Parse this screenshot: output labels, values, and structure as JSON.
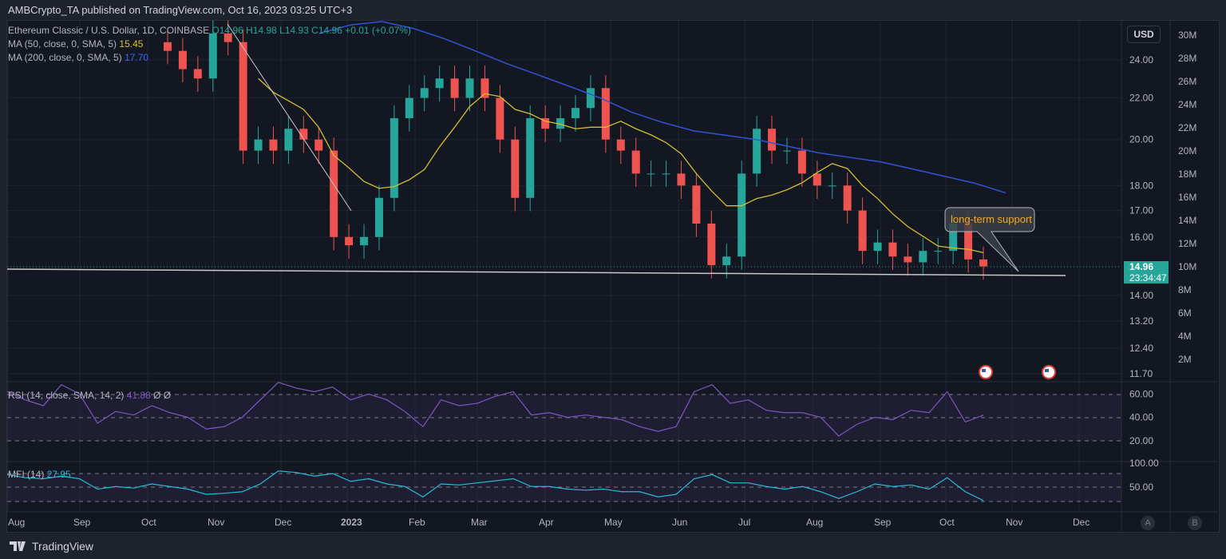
{
  "header": {
    "published": "AMBCrypto_TA published on TradingView.com, Oct 16, 2023 03:25 UTC+3"
  },
  "legend": {
    "symbol": "Ethereum Classic / U.S. Dollar, 1D, COINBASE",
    "ohlc": "O14.96 H14.98 L14.93 C14.96 +0.01 (+0.07%)",
    "ma50_label": "MA (50, close, 0, SMA, 5)",
    "ma50_value": "15.45",
    "ma200_label": "MA (200, close, 0, SMA, 5)",
    "ma200_value": "17.70",
    "rsi_label": "RSI (14, close, SMA, 14, 2)",
    "rsi_value": "41.88",
    "rsi_extra": "Ø Ø",
    "mfi_label": "MFI (14)",
    "mfi_value": "27.95"
  },
  "currency": "USD",
  "last_price": "14.96",
  "countdown": "23:34:47",
  "annotation": "long-term support",
  "scale_buttons": [
    "A",
    "B"
  ],
  "footer": {
    "brand": "TradingView"
  },
  "colors": {
    "up": "#26a69a",
    "down": "#ef5350",
    "ma50": "#d4c02e",
    "ma200": "#2f54d6",
    "rsi": "#7e57c2",
    "mfi": "#26bcd4",
    "annotation": "#f5a623"
  },
  "chart_data": {
    "type": "candlestick",
    "title": "Ethereum Classic / U.S. Dollar, 1D, COINBASE",
    "price_ticks": [
      "24.00",
      "22.00",
      "20.00",
      "18.00",
      "17.00",
      "16.00",
      "14.00",
      "13.20",
      "12.40",
      "11.70"
    ],
    "price_tick_values": [
      24,
      22,
      20,
      18,
      17,
      16,
      14,
      13.2,
      12.4,
      11.7
    ],
    "volume_ticks": [
      "30M",
      "28M",
      "26M",
      "24M",
      "22M",
      "20M",
      "18M",
      "16M",
      "14M",
      "12M",
      "10M",
      "8M",
      "6M",
      "4M",
      "2M"
    ],
    "time_ticks": [
      "Aug",
      "Sep",
      "Oct",
      "Nov",
      "Dec",
      "2023",
      "Feb",
      "Mar",
      "Apr",
      "May",
      "Jun",
      "Jul",
      "Aug",
      "Sep",
      "Oct",
      "Nov",
      "Dec"
    ],
    "rsi_ticks": [
      "60.00",
      "40.00",
      "20.00"
    ],
    "mfi_ticks": [
      "100.00",
      "50.00"
    ],
    "weekly_closes": [
      24.5,
      23.5,
      23,
      25.5,
      25,
      19.5,
      20,
      19.5,
      20.5,
      20,
      19.5,
      16,
      15.7,
      16,
      17.5,
      21,
      22,
      22.5,
      23,
      22,
      23,
      22,
      20,
      17.5,
      21,
      20.5,
      21,
      21.5,
      22.5,
      20,
      19.5,
      18.5,
      18.5,
      18.5,
      18,
      16.5,
      15,
      15.3,
      18.5,
      20.5,
      19.5,
      19.5,
      18.5,
      18,
      18,
      17,
      15.5,
      15.8,
      15.3,
      15.1,
      15.5,
      15.5,
      16.5,
      15.2,
      14.96
    ],
    "ma200_points": [
      25.5,
      26,
      26.2,
      25.8,
      25.2,
      24.5,
      23.8,
      23.2,
      22.6,
      22,
      21.3,
      20.8,
      20.4,
      20.2,
      20,
      19.7,
      19.4,
      19.2,
      19,
      18.7,
      18.4,
      18.1,
      17.7
    ],
    "support_level": 14.8,
    "rsi": [
      62,
      55,
      50,
      68,
      60,
      35,
      45,
      42,
      50,
      44,
      40,
      30,
      32,
      40,
      55,
      70,
      65,
      62,
      66,
      55,
      60,
      55,
      45,
      32,
      55,
      50,
      52,
      58,
      62,
      42,
      44,
      40,
      42,
      40,
      38,
      32,
      28,
      32,
      62,
      68,
      52,
      55,
      46,
      44,
      44,
      40,
      24,
      34,
      40,
      38,
      46,
      44,
      62,
      36,
      41.88
    ],
    "mfi": [
      78,
      72,
      70,
      75,
      70,
      50,
      55,
      52,
      60,
      55,
      50,
      40,
      42,
      45,
      60,
      85,
      82,
      75,
      80,
      65,
      70,
      60,
      55,
      35,
      60,
      58,
      62,
      66,
      70,
      55,
      55,
      50,
      48,
      50,
      45,
      45,
      35,
      40,
      70,
      78,
      62,
      62,
      55,
      50,
      55,
      45,
      32,
      45,
      60,
      55,
      58,
      50,
      72,
      45,
      27.95
    ]
  }
}
